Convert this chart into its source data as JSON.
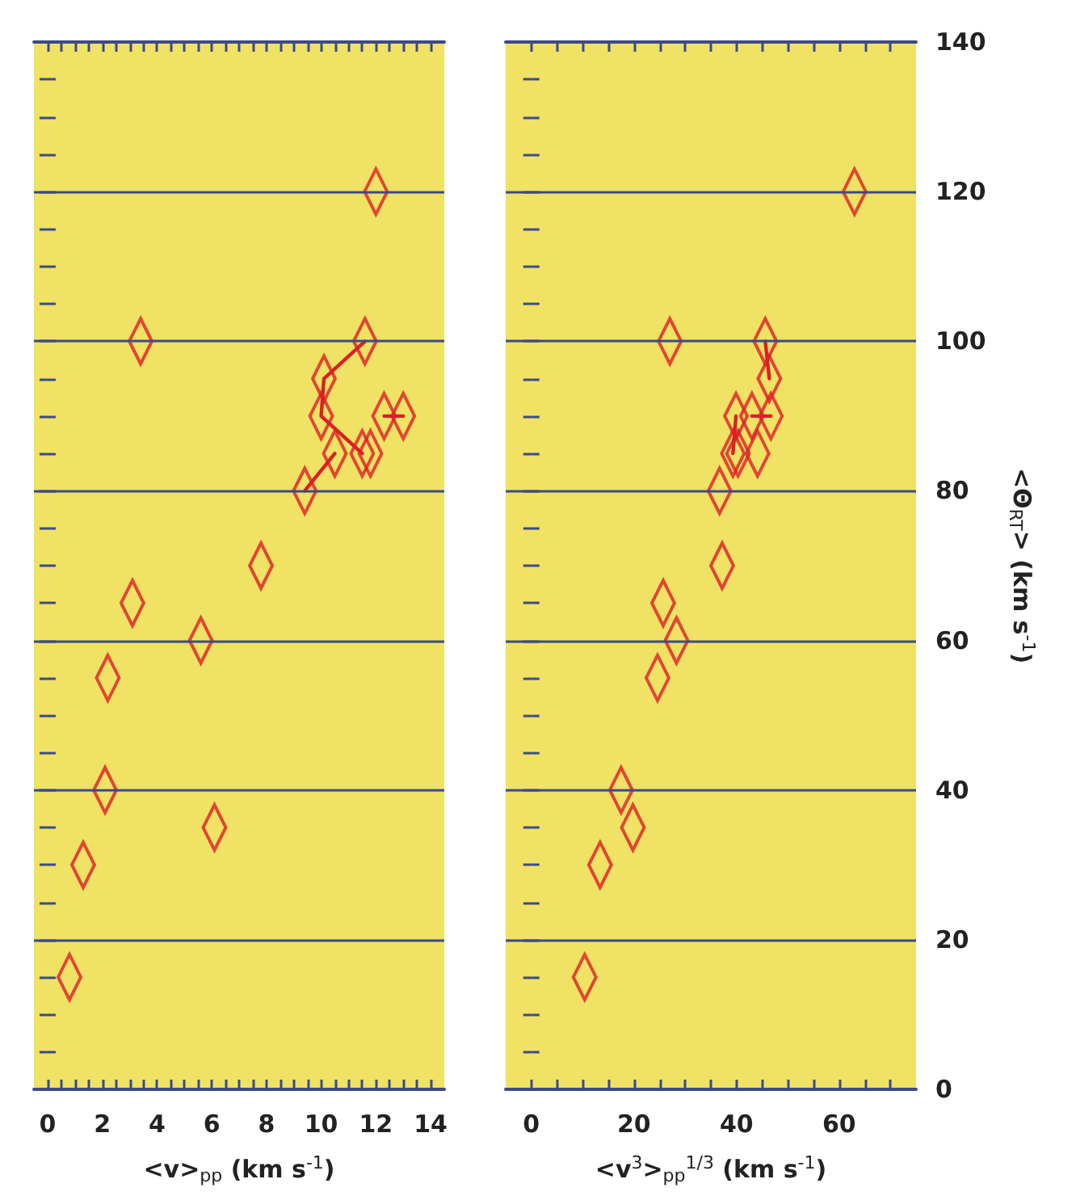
{
  "chart_data": [
    {
      "type": "scatter",
      "xlabel": "<v>$_{pp}$ (km s$^{-1}$)",
      "xlim": [
        -0.5,
        14.5
      ],
      "xticks": [
        0,
        {
          "value": 0.5,
          "label": null
        },
        {
          "value": 1,
          "label": null
        },
        {
          "value": 1.5,
          "label": null
        },
        2,
        {
          "value": 2.5,
          "label": null
        },
        {
          "value": 3,
          "label": null
        },
        {
          "value": 3.5,
          "label": null
        },
        4,
        {
          "value": 4.5,
          "label": null
        },
        {
          "value": 5,
          "label": null
        },
        {
          "value": 5.5,
          "label": null
        },
        6,
        {
          "value": 6.5,
          "label": null
        },
        {
          "value": 7,
          "label": null
        },
        {
          "value": 7.5,
          "label": null
        },
        8,
        {
          "value": 8.5,
          "label": null
        },
        {
          "value": 9,
          "label": null
        },
        {
          "value": 9.5,
          "label": null
        },
        10,
        {
          "value": 10.5,
          "label": null
        },
        {
          "value": 11,
          "label": null
        },
        {
          "value": 11.5,
          "label": null
        },
        12,
        {
          "value": 12.5,
          "label": null
        },
        {
          "value": 13,
          "label": null
        },
        {
          "value": 13.5,
          "label": null
        },
        14
      ],
      "ylim": [
        0,
        140
      ],
      "yticks": [
        0,
        {
          "value": 5,
          "label": null
        },
        {
          "value": 10,
          "label": null
        },
        {
          "value": 15,
          "label": null
        },
        20,
        {
          "value": 25,
          "label": null
        },
        {
          "value": 30,
          "label": null
        },
        {
          "value": 35,
          "label": null
        },
        40,
        {
          "value": 45,
          "label": null
        },
        {
          "value": 50,
          "label": null
        },
        {
          "value": 55,
          "label": null
        },
        60,
        {
          "value": 65,
          "label": null
        },
        {
          "value": 70,
          "label": null
        },
        {
          "value": 75,
          "label": null
        },
        80,
        {
          "value": 85,
          "label": null
        },
        {
          "value": 90,
          "label": null
        },
        {
          "value": 95,
          "label": null
        },
        100,
        {
          "value": 105,
          "label": null
        },
        {
          "value": 110,
          "label": null
        },
        {
          "value": 115,
          "label": null
        },
        120,
        {
          "value": 125,
          "label": null
        },
        {
          "value": 130,
          "label": null
        },
        {
          "value": 135,
          "label": null
        },
        140
      ],
      "grid": "y",
      "tick_labels": "x",
      "marker": "diamond",
      "series": [
        {
          "color": "#dc1f26",
          "x": [
            12,
            3.4,
            11.6,
            10.1,
            10.0,
            12.3,
            13.0,
            10.5,
            11.5,
            11.8,
            9.4,
            7.8,
            3.1,
            5.6,
            2.2,
            2.1,
            6.1,
            1.3,
            0.8
          ],
          "values": [
            120,
            100,
            100,
            95,
            90,
            90,
            90,
            85,
            85,
            85,
            80,
            70,
            65,
            60,
            55,
            40,
            35,
            30,
            15
          ]
        },
        {
          "type": "line",
          "marker": "none",
          "color": "#dc1f26",
          "x": [
            11.6,
            10.1,
            10.0,
            11.5
          ],
          "values": [
            100,
            95,
            90,
            85
          ]
        },
        {
          "type": "line",
          "marker": "none",
          "color": "#dc1f26",
          "x": [
            10.5,
            9.4
          ],
          "values": [
            85,
            80
          ]
        },
        {
          "type": "line",
          "marker": "none",
          "color": "#dc1f26",
          "x": [
            12.3,
            13.0
          ],
          "values": [
            90,
            90
          ]
        }
      ]
    },
    {
      "type": "scatter",
      "xlabel": "<v$^{3}$>$_{pp}$$^{1/3}$ (km s$^{-1}$)",
      "ylabel": "<Θ$_{RT}$> (km s$^{-1}$)",
      "xlim": [
        -5,
        75
      ],
      "xticks": [
        0,
        {
          "value": 5,
          "label": null
        },
        {
          "value": 10,
          "label": null
        },
        {
          "value": 15,
          "label": null
        },
        20,
        {
          "value": 25,
          "label": null
        },
        {
          "value": 30,
          "label": null
        },
        {
          "value": 35,
          "label": null
        },
        40,
        {
          "value": 45,
          "label": null
        },
        {
          "value": 50,
          "label": null
        },
        {
          "value": 55,
          "label": null
        },
        60,
        {
          "value": 65,
          "label": null
        },
        {
          "value": 70,
          "label": null
        }
      ],
      "ylim": [
        0,
        140
      ],
      "yticks": [
        0,
        {
          "value": 5,
          "label": null
        },
        {
          "value": 10,
          "label": null
        },
        {
          "value": 15,
          "label": null
        },
        20,
        {
          "value": 25,
          "label": null
        },
        {
          "value": 30,
          "label": null
        },
        {
          "value": 35,
          "label": null
        },
        40,
        {
          "value": 45,
          "label": null
        },
        {
          "value": 50,
          "label": null
        },
        {
          "value": 55,
          "label": null
        },
        60,
        {
          "value": 65,
          "label": null
        },
        {
          "value": 70,
          "label": null
        },
        {
          "value": 75,
          "label": null
        },
        80,
        {
          "value": 85,
          "label": null
        },
        {
          "value": 90,
          "label": null
        },
        {
          "value": 95,
          "label": null
        },
        100,
        {
          "value": 105,
          "label": null
        },
        {
          "value": 110,
          "label": null
        },
        {
          "value": 115,
          "label": null
        },
        120,
        {
          "value": 125,
          "label": null
        },
        {
          "value": 130,
          "label": null
        },
        {
          "value": 135,
          "label": null
        },
        140
      ],
      "grid": "y",
      "marker": "diamond",
      "series": [
        {
          "color": "#dc1f26",
          "x": [
            63,
            27,
            45.6,
            46.4,
            46.7,
            43,
            39.9,
            44.1,
            39.3,
            40.3,
            36.7,
            37.2,
            25.7,
            28.3,
            24.6,
            17.5,
            19.8,
            13.4,
            10.4
          ],
          "values": [
            120,
            100,
            100,
            95,
            90,
            90,
            90,
            85,
            85,
            85,
            80,
            70,
            65,
            60,
            55,
            40,
            35,
            30,
            15
          ]
        },
        {
          "type": "line",
          "marker": "none",
          "color": "#dc1f26",
          "x": [
            45.6,
            46.4
          ],
          "values": [
            100,
            95
          ]
        },
        {
          "type": "line",
          "marker": "none",
          "color": "#dc1f26",
          "x": [
            43,
            46.7
          ],
          "values": [
            90,
            90
          ]
        },
        {
          "type": "line",
          "marker": "none",
          "color": "#dc1f26",
          "x": [
            39.9,
            39.3
          ],
          "values": [
            90,
            85
          ]
        }
      ]
    }
  ]
}
